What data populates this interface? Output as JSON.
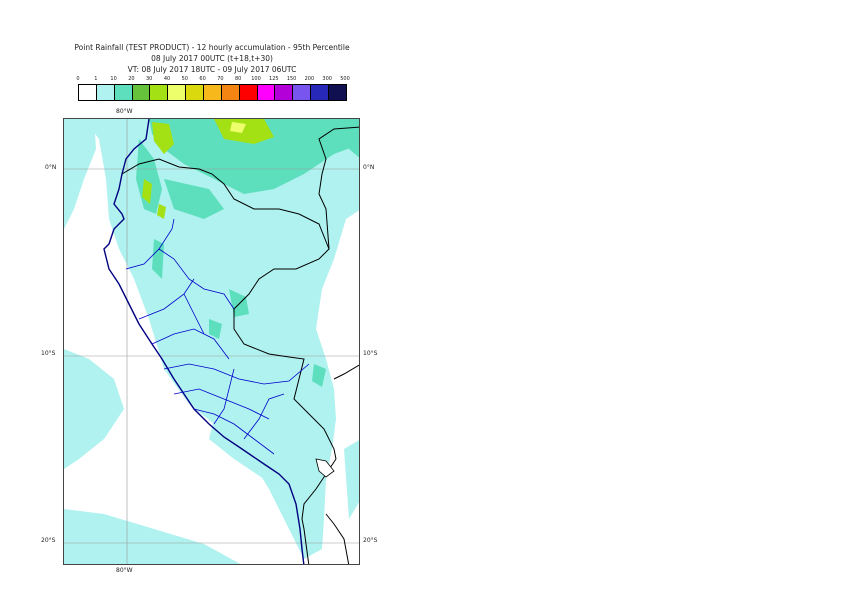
{
  "title": {
    "line1": "Point Rainfall (TEST PRODUCT) - 12 hourly accumulation - 95th Percentile",
    "line2": "08 July 2017 00UTC (t+18,t+30)",
    "line3": "VT: 08 July 2017 18UTC - 09 July 2017 06UTC"
  },
  "legend": {
    "thresholds": [
      "0",
      "1",
      "10",
      "20",
      "30",
      "40",
      "50",
      "60",
      "70",
      "80",
      "100",
      "125",
      "150",
      "200",
      "300",
      "500"
    ],
    "colors": [
      "#ffffff",
      "#aff2f0",
      "#5ddfbd",
      "#66c23a",
      "#a3e014",
      "#eeff6c",
      "#d9d90d",
      "#f7b81c",
      "#f58512",
      "#ff0000",
      "#ff00ff",
      "#b300d9",
      "#7755ee",
      "#2828b8",
      "#101050"
    ]
  },
  "map": {
    "lon_labels": [
      "80°W",
      "80°W"
    ],
    "lat_labels": {
      "left": [
        "0°N",
        "10°S",
        "20°S"
      ],
      "right": [
        "0°N",
        "10°S",
        "20°S"
      ]
    },
    "colors": {
      "land_fill": "#aff2f0",
      "moderate_fill": "#5ddfbd",
      "heavy_fill": "#a3e014",
      "peak_fill": "#eeff6c",
      "coast_line": "#000080",
      "border_line": "#000000",
      "region_line": "#0000cc"
    }
  }
}
